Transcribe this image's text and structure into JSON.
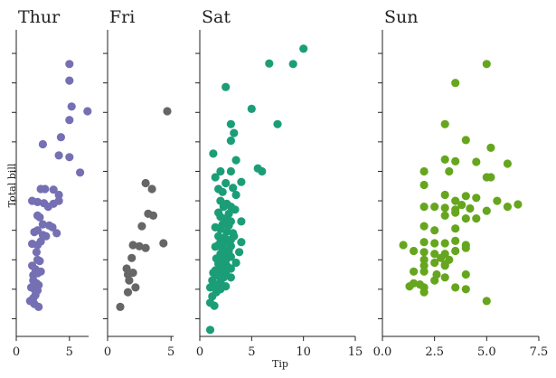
{
  "chart_data": {
    "type": "scatter",
    "xlabel": "Tip",
    "ylabel": "Total bill",
    "shared_y": true,
    "grid": false,
    "panels": [
      {
        "title": "Thur",
        "color": "#7570b3",
        "xlim": [
          0,
          6.8
        ],
        "xticks": [
          0,
          5
        ],
        "tick_labels": [
          "0",
          "5"
        ],
        "points": [
          [
            5.0,
            48.2
          ],
          [
            5.0,
            45.4
          ],
          [
            6.7,
            40.2
          ],
          [
            5.2,
            41.0
          ],
          [
            5.0,
            38.7
          ],
          [
            4.2,
            35.8
          ],
          [
            2.5,
            34.6
          ],
          [
            4.0,
            32.7
          ],
          [
            5.0,
            32.4
          ],
          [
            6.0,
            29.8
          ],
          [
            2.3,
            27.0
          ],
          [
            2.7,
            27.0
          ],
          [
            3.5,
            26.9
          ],
          [
            4.0,
            26.0
          ],
          [
            1.5,
            25.0
          ],
          [
            2.0,
            24.8
          ],
          [
            2.6,
            24.6
          ],
          [
            3.0,
            24.0
          ],
          [
            3.5,
            24.5
          ],
          [
            4.0,
            25.0
          ],
          [
            2.0,
            22.5
          ],
          [
            2.2,
            22.2
          ],
          [
            2.5,
            21.0
          ],
          [
            3.1,
            20.8
          ],
          [
            3.4,
            20.5
          ],
          [
            2.0,
            20.0
          ],
          [
            1.7,
            19.7
          ],
          [
            2.5,
            19.2
          ],
          [
            2.8,
            19.0
          ],
          [
            3.8,
            19.5
          ],
          [
            1.5,
            17.7
          ],
          [
            2.0,
            17.5
          ],
          [
            2.3,
            18.1
          ],
          [
            1.9,
            16.3
          ],
          [
            2.0,
            15.0
          ],
          [
            1.5,
            14.0
          ],
          [
            2.2,
            14.8
          ],
          [
            1.8,
            13.4
          ],
          [
            1.6,
            12.4
          ],
          [
            2.0,
            12.7
          ],
          [
            2.3,
            13.0
          ],
          [
            1.6,
            11.5
          ],
          [
            1.9,
            11.0
          ],
          [
            2.1,
            10.7
          ],
          [
            1.4,
            10.3
          ],
          [
            1.7,
            10.0
          ],
          [
            2.0,
            9.8
          ],
          [
            1.3,
            8.0
          ],
          [
            1.7,
            7.5
          ],
          [
            2.1,
            7.0
          ],
          [
            1.6,
            8.5
          ],
          [
            1.8,
            9.0
          ]
        ]
      },
      {
        "title": "Fri",
        "color": "#666666",
        "xlim": [
          0,
          5.2
        ],
        "xticks": [
          0,
          5
        ],
        "tick_labels": [
          "0",
          "5"
        ],
        "points": [
          [
            4.7,
            40.2
          ],
          [
            3.0,
            28.0
          ],
          [
            3.5,
            27.0
          ],
          [
            3.2,
            22.8
          ],
          [
            3.6,
            22.5
          ],
          [
            2.7,
            20.7
          ],
          [
            2.0,
            17.5
          ],
          [
            2.5,
            17.3
          ],
          [
            3.0,
            17.0
          ],
          [
            4.4,
            17.8
          ],
          [
            1.9,
            15.3
          ],
          [
            1.5,
            13.5
          ],
          [
            2.0,
            12.8
          ],
          [
            1.6,
            12.5
          ],
          [
            1.7,
            11.5
          ],
          [
            2.2,
            10.3
          ],
          [
            1.6,
            9.5
          ],
          [
            1.0,
            7.0
          ]
        ]
      },
      {
        "title": "Sat",
        "color": "#1b9e77",
        "xlim": [
          0,
          15
        ],
        "xticks": [
          0,
          5,
          10,
          15
        ],
        "tick_labels": [
          "0",
          "5",
          "10",
          "15"
        ],
        "points": [
          [
            10.0,
            50.8
          ],
          [
            6.7,
            48.3
          ],
          [
            9.0,
            48.2
          ],
          [
            2.5,
            44.3
          ],
          [
            5.0,
            40.6
          ],
          [
            7.5,
            38.0
          ],
          [
            3.0,
            38.0
          ],
          [
            3.3,
            36.5
          ],
          [
            3.0,
            35.2
          ],
          [
            1.3,
            33.0
          ],
          [
            3.5,
            31.9
          ],
          [
            5.6,
            30.5
          ],
          [
            2.0,
            30.0
          ],
          [
            6.0,
            30.0
          ],
          [
            3.0,
            30.0
          ],
          [
            1.5,
            29.0
          ],
          [
            2.5,
            28.0
          ],
          [
            4.0,
            28.2
          ],
          [
            3.2,
            27.2
          ],
          [
            1.8,
            27.0
          ],
          [
            2.2,
            26.5
          ],
          [
            3.5,
            26.0
          ],
          [
            2.0,
            25.0
          ],
          [
            2.6,
            24.5
          ],
          [
            3.0,
            24.0
          ],
          [
            3.4,
            23.5
          ],
          [
            1.8,
            23.0
          ],
          [
            2.0,
            22.3
          ],
          [
            2.5,
            22.0
          ],
          [
            3.0,
            21.5
          ],
          [
            4.0,
            21.5
          ],
          [
            2.2,
            21.0
          ],
          [
            2.8,
            20.8
          ],
          [
            1.5,
            20.5
          ],
          [
            2.0,
            20.2
          ],
          [
            2.6,
            19.8
          ],
          [
            3.2,
            19.5
          ],
          [
            1.8,
            19.0
          ],
          [
            2.4,
            18.8
          ],
          [
            3.0,
            18.4
          ],
          [
            2.0,
            18.0
          ],
          [
            2.5,
            17.8
          ],
          [
            3.0,
            17.3
          ],
          [
            1.5,
            17.2
          ],
          [
            2.2,
            16.8
          ],
          [
            2.8,
            16.5
          ],
          [
            2.0,
            16.0
          ],
          [
            2.5,
            15.8
          ],
          [
            3.0,
            15.5
          ],
          [
            1.6,
            15.2
          ],
          [
            2.0,
            15.0
          ],
          [
            2.5,
            14.8
          ],
          [
            1.8,
            14.3
          ],
          [
            2.2,
            14.0
          ],
          [
            2.7,
            13.8
          ],
          [
            3.0,
            13.5
          ],
          [
            1.5,
            13.2
          ],
          [
            2.0,
            13.0
          ],
          [
            2.5,
            12.8
          ],
          [
            1.7,
            12.3
          ],
          [
            2.3,
            12.0
          ],
          [
            1.2,
            11.5
          ],
          [
            2.0,
            11.2
          ],
          [
            1.5,
            10.8
          ],
          [
            1.0,
            10.3
          ],
          [
            2.0,
            10.0
          ],
          [
            1.6,
            9.5
          ],
          [
            1.2,
            8.8
          ],
          [
            1.0,
            7.7
          ],
          [
            1.4,
            7.2
          ],
          [
            2.5,
            10.5
          ],
          [
            3.5,
            14.5
          ],
          [
            3.0,
            12.0
          ],
          [
            1.3,
            12.8
          ],
          [
            3.8,
            16.3
          ],
          [
            4.0,
            18.0
          ],
          [
            2.8,
            22.8
          ],
          [
            1.0,
            3.1
          ],
          [
            1.8,
            17.5
          ],
          [
            3.3,
            19.0
          ],
          [
            2.3,
            24.0
          ]
        ]
      },
      {
        "title": "Sun",
        "color": "#66a61e",
        "xlim": [
          0,
          7.5
        ],
        "xticks": [
          0,
          2.5,
          5,
          7.5
        ],
        "tick_labels": [
          "0.0",
          "2.5",
          "5.0",
          "7.5"
        ],
        "points": [
          [
            5.0,
            48.2
          ],
          [
            3.5,
            45.0
          ],
          [
            3.0,
            38.0
          ],
          [
            4.0,
            35.3
          ],
          [
            5.2,
            34.0
          ],
          [
            3.0,
            32.0
          ],
          [
            3.5,
            31.7
          ],
          [
            4.5,
            31.6
          ],
          [
            6.0,
            31.3
          ],
          [
            2.0,
            30.0
          ],
          [
            3.2,
            30.0
          ],
          [
            5.0,
            29.0
          ],
          [
            5.2,
            29.0
          ],
          [
            2.0,
            27.7
          ],
          [
            3.0,
            26.0
          ],
          [
            4.0,
            25.8
          ],
          [
            4.5,
            25.5
          ],
          [
            3.5,
            25.0
          ],
          [
            5.5,
            25.0
          ],
          [
            6.5,
            24.4
          ],
          [
            2.0,
            24.0
          ],
          [
            2.5,
            24.0
          ],
          [
            3.0,
            23.8
          ],
          [
            3.8,
            24.3
          ],
          [
            4.2,
            23.7
          ],
          [
            5.0,
            23.3
          ],
          [
            6.0,
            24.0
          ],
          [
            3.5,
            23.0
          ],
          [
            3.0,
            22.5
          ],
          [
            4.0,
            22.0
          ],
          [
            4.5,
            22.0
          ],
          [
            2.0,
            20.7
          ],
          [
            2.5,
            20.0
          ],
          [
            3.5,
            20.3
          ],
          [
            1.0,
            17.5
          ],
          [
            2.0,
            18.0
          ],
          [
            2.5,
            17.8
          ],
          [
            3.0,
            17.8
          ],
          [
            3.5,
            18.2
          ],
          [
            4.0,
            17.5
          ],
          [
            1.5,
            16.5
          ],
          [
            2.0,
            16.3
          ],
          [
            2.5,
            16.0
          ],
          [
            3.0,
            16.0
          ],
          [
            3.5,
            16.5
          ],
          [
            2.0,
            15.0
          ],
          [
            2.8,
            15.3
          ],
          [
            3.2,
            15.0
          ],
          [
            2.0,
            14.0
          ],
          [
            2.5,
            14.5
          ],
          [
            3.0,
            14.2
          ],
          [
            1.5,
            13.0
          ],
          [
            2.0,
            13.0
          ],
          [
            2.6,
            12.5
          ],
          [
            3.0,
            12.0
          ],
          [
            4.0,
            12.5
          ],
          [
            1.5,
            11.0
          ],
          [
            2.0,
            10.3
          ],
          [
            1.8,
            10.8
          ],
          [
            3.5,
            10.3
          ],
          [
            2.5,
            11.5
          ],
          [
            2.0,
            9.5
          ],
          [
            4.0,
            10.0
          ],
          [
            5.0,
            8.0
          ],
          [
            3.0,
            14.0
          ],
          [
            1.3,
            10.5
          ],
          [
            4.0,
            17.0
          ],
          [
            3.5,
            23.5
          ]
        ]
      }
    ],
    "ylim": [
      2,
      54
    ]
  }
}
